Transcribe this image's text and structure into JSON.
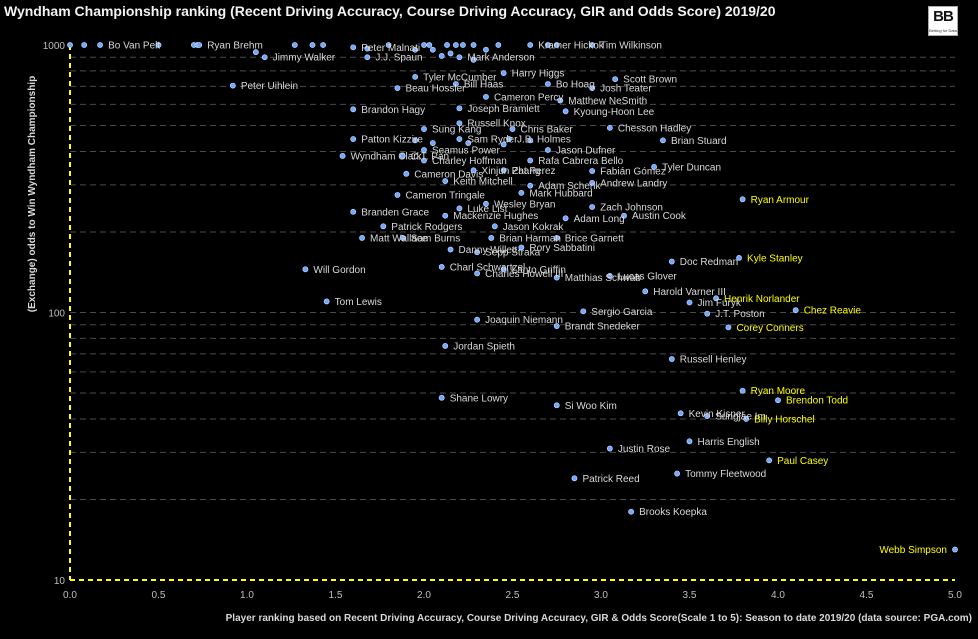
{
  "chart_data": {
    "type": "scatter",
    "title": "Wyndham Championship ranking (Recent Driving Accuracy, Course Driving Accuracy, GIR and Odds Score) 2019/20",
    "xlabel": "Player ranking based on Recent Driving Accuracy, Course Driving Accuracy, GIR & Odds Score(Scale 1 to 5): Season to date 2019/20 (data source: PGA.com)",
    "ylabel": "(Exchange) odds to Win Wyndham Championship",
    "xlim": [
      0,
      5
    ],
    "ylim": [
      10,
      1000
    ],
    "yscale": "log",
    "x_ticks": [
      "0.0",
      "0.5",
      "1.0",
      "1.5",
      "2.0",
      "2.5",
      "3.0",
      "3.5",
      "4.0",
      "4.5",
      "5.0"
    ],
    "y_ticks": [
      "10",
      "100",
      "1000"
    ],
    "grid": "horizontal dashed",
    "colors": {
      "marker": "#6fa8ff",
      "label": "#d9d9d9",
      "highlight": "#ffff00",
      "axis": "#ffff00",
      "background": "#000000"
    },
    "points": [
      {
        "name": "Bo Van Pelt",
        "x": 0.17,
        "y": 1000
      },
      {
        "name": "Ryan Brehm",
        "x": 0.73,
        "y": 1000
      },
      {
        "name": "Peter Malnati",
        "x": 1.6,
        "y": 980
      },
      {
        "name": "Kramer Hickok",
        "x": 2.6,
        "y": 1000
      },
      {
        "name": "Tim Wilkinson",
        "x": 2.95,
        "y": 1000
      },
      {
        "name": "Jimmy Walker",
        "x": 1.1,
        "y": 900
      },
      {
        "name": "J.J. Spaun",
        "x": 1.68,
        "y": 900
      },
      {
        "name": "Mark Anderson",
        "x": 2.2,
        "y": 900
      },
      {
        "name": "Harry Higgs",
        "x": 2.45,
        "y": 785
      },
      {
        "name": "Tyler McCumber",
        "x": 1.95,
        "y": 760
      },
      {
        "name": "Scott Brown",
        "x": 3.08,
        "y": 745
      },
      {
        "name": "Peter Uihlein",
        "x": 0.92,
        "y": 705
      },
      {
        "name": "Bill Haas",
        "x": 2.18,
        "y": 715
      },
      {
        "name": "Bo Hoag",
        "x": 2.7,
        "y": 715
      },
      {
        "name": "Beau Hossler",
        "x": 1.85,
        "y": 690
      },
      {
        "name": "Josh Teater",
        "x": 2.95,
        "y": 690
      },
      {
        "name": "Cameron Percy",
        "x": 2.35,
        "y": 640
      },
      {
        "name": "Matthew NeSmith",
        "x": 2.77,
        "y": 620
      },
      {
        "name": "Brandon Hagy",
        "x": 1.6,
        "y": 575
      },
      {
        "name": "Joseph Bramlett",
        "x": 2.2,
        "y": 580
      },
      {
        "name": "Kyoung-Hoon Lee",
        "x": 2.8,
        "y": 565
      },
      {
        "name": "Russell Knox",
        "x": 2.2,
        "y": 510
      },
      {
        "name": "Sung Kang",
        "x": 2.0,
        "y": 485
      },
      {
        "name": "Chris Baker",
        "x": 2.5,
        "y": 485
      },
      {
        "name": "Chesson Hadley",
        "x": 3.05,
        "y": 490
      },
      {
        "name": "Patton Kizzire",
        "x": 1.6,
        "y": 445
      },
      {
        "name": "Sam Ryder",
        "x": 2.2,
        "y": 445
      },
      {
        "name": "J.B. Holmes",
        "x": 2.48,
        "y": 445
      },
      {
        "name": "Brian Stuard",
        "x": 3.35,
        "y": 440
      },
      {
        "name": "Seamus Power",
        "x": 2.0,
        "y": 405
      },
      {
        "name": "Jason Dufner",
        "x": 2.7,
        "y": 405
      },
      {
        "name": "Wyndham Clark",
        "x": 1.54,
        "y": 385
      },
      {
        "name": "C.T. Pan",
        "x": 1.88,
        "y": 385
      },
      {
        "name": "Charley Hoffman",
        "x": 2.0,
        "y": 370
      },
      {
        "name": "Rafa Cabrera Bello",
        "x": 2.6,
        "y": 370
      },
      {
        "name": "Xinjun Zhang",
        "x": 2.28,
        "y": 340
      },
      {
        "name": "Pat Perez",
        "x": 2.45,
        "y": 340
      },
      {
        "name": "Tyler Duncan",
        "x": 3.3,
        "y": 350
      },
      {
        "name": "Fabián Gómez",
        "x": 2.95,
        "y": 338
      },
      {
        "name": "Cameron Davis",
        "x": 1.9,
        "y": 330
      },
      {
        "name": "Keith Mitchell",
        "x": 2.12,
        "y": 310
      },
      {
        "name": "Andrew Landry",
        "x": 2.95,
        "y": 305
      },
      {
        "name": "Adam Schenk",
        "x": 2.6,
        "y": 298
      },
      {
        "name": "Mark Hubbard",
        "x": 2.55,
        "y": 280
      },
      {
        "name": "Cameron Tringale",
        "x": 1.85,
        "y": 275
      },
      {
        "name": "Ryan Armour",
        "x": 3.8,
        "y": 265
      },
      {
        "name": "Wesley Bryan",
        "x": 2.35,
        "y": 255
      },
      {
        "name": "Luke List",
        "x": 2.2,
        "y": 245
      },
      {
        "name": "Zach Johnson",
        "x": 2.95,
        "y": 248
      },
      {
        "name": "Branden Grace",
        "x": 1.6,
        "y": 238
      },
      {
        "name": "Mackenzie Hughes",
        "x": 2.12,
        "y": 230
      },
      {
        "name": "Austin Cook",
        "x": 3.13,
        "y": 230
      },
      {
        "name": "Adam Long",
        "x": 2.8,
        "y": 225
      },
      {
        "name": "Patrick Rodgers",
        "x": 1.77,
        "y": 210
      },
      {
        "name": "Jason Kokrak",
        "x": 2.4,
        "y": 210
      },
      {
        "name": "Matt Wallace",
        "x": 1.65,
        "y": 190
      },
      {
        "name": "Sam Burns",
        "x": 1.88,
        "y": 190
      },
      {
        "name": "Brian Harman",
        "x": 2.38,
        "y": 190
      },
      {
        "name": "Brice Garnett",
        "x": 2.75,
        "y": 190
      },
      {
        "name": "Danny Willett",
        "x": 2.15,
        "y": 172
      },
      {
        "name": "Sepp Straka",
        "x": 2.3,
        "y": 168
      },
      {
        "name": "Rory Sabbatini",
        "x": 2.55,
        "y": 175
      },
      {
        "name": "Kyle Stanley",
        "x": 3.78,
        "y": 160
      },
      {
        "name": "Doc Redman",
        "x": 3.4,
        "y": 155
      },
      {
        "name": "Will Gordon",
        "x": 1.33,
        "y": 145
      },
      {
        "name": "Charl Schwartzel",
        "x": 2.1,
        "y": 148
      },
      {
        "name": "Lanto Griffin",
        "x": 2.45,
        "y": 145
      },
      {
        "name": "Charles Howell III",
        "x": 2.3,
        "y": 140
      },
      {
        "name": "Matthias Schwab",
        "x": 2.75,
        "y": 135
      },
      {
        "name": "Lucas Glover",
        "x": 3.05,
        "y": 137
      },
      {
        "name": "Harold Varner III",
        "x": 3.25,
        "y": 120
      },
      {
        "name": "Henrik Norlander",
        "x": 3.65,
        "y": 113
      },
      {
        "name": "Tom Lewis",
        "x": 1.45,
        "y": 110
      },
      {
        "name": "Jim Furyk",
        "x": 3.5,
        "y": 109
      },
      {
        "name": "Chez Reavie",
        "x": 4.1,
        "y": 102
      },
      {
        "name": "Sergio Garcia",
        "x": 2.9,
        "y": 101
      },
      {
        "name": "J.T. Poston",
        "x": 3.6,
        "y": 99
      },
      {
        "name": "Joaquin Niemann",
        "x": 2.3,
        "y": 94
      },
      {
        "name": "Brandt Snedeker",
        "x": 2.75,
        "y": 89
      },
      {
        "name": "Corey Conners",
        "x": 3.72,
        "y": 88
      },
      {
        "name": "Jordan Spieth",
        "x": 2.12,
        "y": 75
      },
      {
        "name": "Russell Henley",
        "x": 3.4,
        "y": 67
      },
      {
        "name": "Ryan Moore",
        "x": 3.8,
        "y": 51
      },
      {
        "name": "Shane Lowry",
        "x": 2.1,
        "y": 48
      },
      {
        "name": "Brendon Todd",
        "x": 4.0,
        "y": 47
      },
      {
        "name": "Si Woo Kim",
        "x": 2.75,
        "y": 45
      },
      {
        "name": "Kevin Kisner",
        "x": 3.45,
        "y": 42
      },
      {
        "name": "Sungjae Im",
        "x": 3.6,
        "y": 41
      },
      {
        "name": "Billy Horschel",
        "x": 3.82,
        "y": 40
      },
      {
        "name": "Harris English",
        "x": 3.5,
        "y": 33
      },
      {
        "name": "Justin Rose",
        "x": 3.05,
        "y": 31
      },
      {
        "name": "Paul Casey",
        "x": 3.95,
        "y": 28
      },
      {
        "name": "Tommy Fleetwood",
        "x": 3.43,
        "y": 25
      },
      {
        "name": "Patrick Reed",
        "x": 2.85,
        "y": 24
      },
      {
        "name": "Brooks Koepka",
        "x": 3.17,
        "y": 18
      },
      {
        "name": "Webb Simpson",
        "x": 5.0,
        "y": 13
      }
    ],
    "highlighted": [
      "Ryan Armour",
      "Kyle Stanley",
      "Henrik Norlander",
      "Chez Reavie",
      "Corey Conners",
      "Ryan Moore",
      "Brendon Todd",
      "Billy Horschel",
      "Paul Casey",
      "Webb Simpson"
    ],
    "unlabeled_points": [
      {
        "x": 0.0,
        "y": 1000
      },
      {
        "x": 0.08,
        "y": 1000
      },
      {
        "x": 0.5,
        "y": 1000
      },
      {
        "x": 0.7,
        "y": 1000
      },
      {
        "x": 0.72,
        "y": 1000
      },
      {
        "x": 1.27,
        "y": 1000
      },
      {
        "x": 1.37,
        "y": 1000
      },
      {
        "x": 1.43,
        "y": 1000
      },
      {
        "x": 1.8,
        "y": 1000
      },
      {
        "x": 2.0,
        "y": 1000
      },
      {
        "x": 2.03,
        "y": 1000
      },
      {
        "x": 2.13,
        "y": 1000
      },
      {
        "x": 2.18,
        "y": 1000
      },
      {
        "x": 2.22,
        "y": 1000
      },
      {
        "x": 2.28,
        "y": 1000
      },
      {
        "x": 2.42,
        "y": 1000
      },
      {
        "x": 2.7,
        "y": 1000
      },
      {
        "x": 2.75,
        "y": 1000
      },
      {
        "x": 1.68,
        "y": 970
      },
      {
        "x": 1.95,
        "y": 960
      },
      {
        "x": 2.05,
        "y": 960
      },
      {
        "x": 2.15,
        "y": 930
      },
      {
        "x": 1.05,
        "y": 940
      },
      {
        "x": 2.28,
        "y": 880
      },
      {
        "x": 2.35,
        "y": 960
      },
      {
        "x": 2.1,
        "y": 910
      },
      {
        "x": 1.95,
        "y": 440
      },
      {
        "x": 2.05,
        "y": 430
      },
      {
        "x": 2.25,
        "y": 430
      },
      {
        "x": 2.6,
        "y": 440
      },
      {
        "x": 2.45,
        "y": 425
      }
    ]
  }
}
